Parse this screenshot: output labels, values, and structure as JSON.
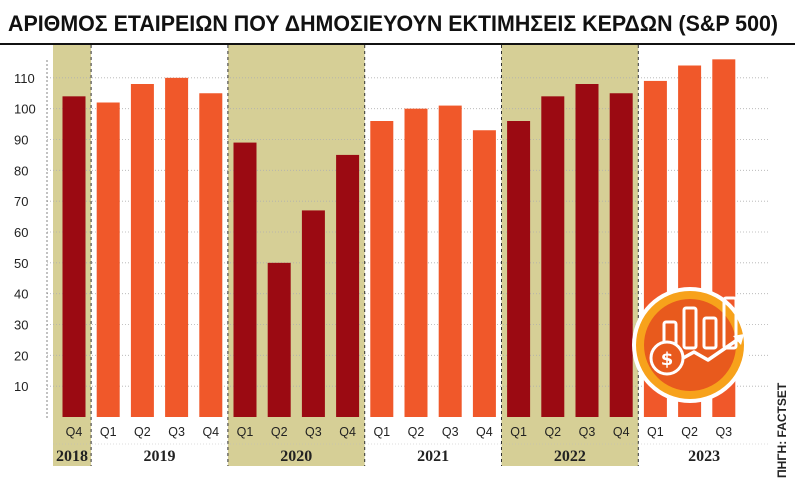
{
  "chart_data": {
    "type": "bar",
    "title": "ΑΡΙΘΜΟΣ ΕΤΑΙΡΕΙΩΝ ΠΟΥ ΔΗΜΟΣΙΕΥΟΥΝ ΕΚΤΙΜΗΣΕΙΣ ΚΕΡΔΩΝ (S&P 500)",
    "source": "ΠΗΓΗ: FACTSET",
    "ylim": [
      0,
      120
    ],
    "yticks": [
      10,
      20,
      30,
      40,
      50,
      60,
      70,
      80,
      90,
      100,
      110
    ],
    "grid": true,
    "categories": [
      "Q4",
      "Q1",
      "Q2",
      "Q3",
      "Q4",
      "Q1",
      "Q2",
      "Q3",
      "Q4",
      "Q1",
      "Q2",
      "Q3",
      "Q4",
      "Q1",
      "Q2",
      "Q3",
      "Q4",
      "Q1",
      "Q2",
      "Q3"
    ],
    "values": [
      104,
      102,
      108,
      110,
      105,
      89,
      50,
      67,
      85,
      96,
      100,
      101,
      93,
      96,
      104,
      108,
      105,
      109,
      114,
      116
    ],
    "year_groups": [
      {
        "label": "2018",
        "count": 1,
        "highlight": true
      },
      {
        "label": "2019",
        "count": 4,
        "highlight": false
      },
      {
        "label": "2020",
        "count": 4,
        "highlight": true
      },
      {
        "label": "2021",
        "count": 4,
        "highlight": false
      },
      {
        "label": "2022",
        "count": 4,
        "highlight": true
      },
      {
        "label": "2023",
        "count": 3,
        "highlight": false
      }
    ],
    "colors": {
      "highlight_bar": "#9b0a12",
      "normal_bar": "#f0582a",
      "highlight_band": "#d6cf96",
      "title_rule": "#111111",
      "grid": "#b0b0b0",
      "icon_ring": "#f7a21b",
      "icon_fill": "#e85a1d"
    },
    "icon": "growth-chart-coin-icon"
  }
}
